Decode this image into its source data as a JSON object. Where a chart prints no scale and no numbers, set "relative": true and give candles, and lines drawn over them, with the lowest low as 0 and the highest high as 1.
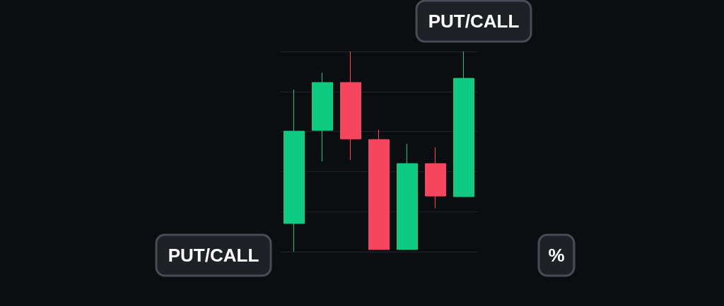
{
  "chart_data": {
    "type": "candlestick",
    "relative": true,
    "grid": "y",
    "categories": [
      null,
      null,
      null,
      null,
      null,
      null,
      null
    ],
    "ohlc": [
      [
        0.141,
        0.81,
        0,
        0.602
      ],
      [
        0.606,
        0.894,
        0.451,
        0.845
      ],
      [
        0.845,
        1,
        0.458,
        0.563
      ],
      [
        0.56,
        0.609,
        0.011,
        0.011
      ],
      [
        0.011,
        0.539,
        0.011,
        0.44
      ],
      [
        0.44,
        0.521,
        0.218,
        0.278
      ],
      [
        0.275,
        1,
        0.275,
        0.866
      ]
    ],
    "colors": [
      "#0ecb81",
      "#0ecb81",
      "#f6465d",
      "#f6465d",
      "#0ecb81",
      "#f6465d",
      "#0ecb81"
    ],
    "annotations": [
      "PUT/CALL",
      "PUT/CALL",
      "%"
    ]
  }
}
